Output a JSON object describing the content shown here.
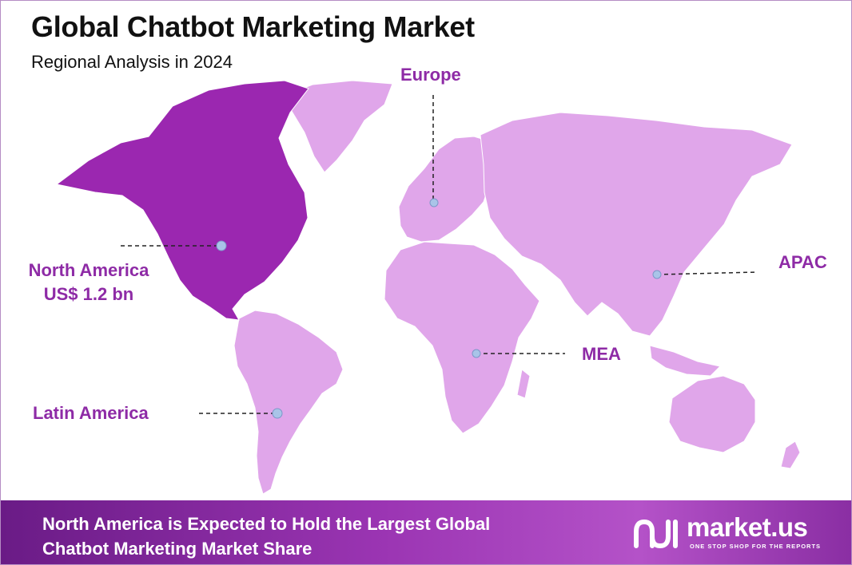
{
  "title": "Global Chatbot Marketing Market",
  "subtitle": "Regional Analysis in 2024",
  "regions": [
    {
      "id": "north-america",
      "name": "North America",
      "value": "US$ 1.2 bn",
      "highlight": true
    },
    {
      "id": "europe",
      "name": "Europe"
    },
    {
      "id": "apac",
      "name": "APAC"
    },
    {
      "id": "mea",
      "name": "MEA"
    },
    {
      "id": "latin-america",
      "name": "Latin America"
    }
  ],
  "footer": {
    "headline_line1": "North America is Expected to Hold the Largest Global",
    "headline_line2": "Chatbot Marketing Market Share"
  },
  "brand": {
    "name": "market.us",
    "tagline": "ONE STOP SHOP FOR THE REPORTS",
    "logo_icon": "market-us-logo-icon"
  },
  "colors": {
    "highlight_region": "#9b27b0",
    "other_regions": "#e0a6ea",
    "label": "#8e2ba6",
    "marker": "#a9c4e8"
  }
}
